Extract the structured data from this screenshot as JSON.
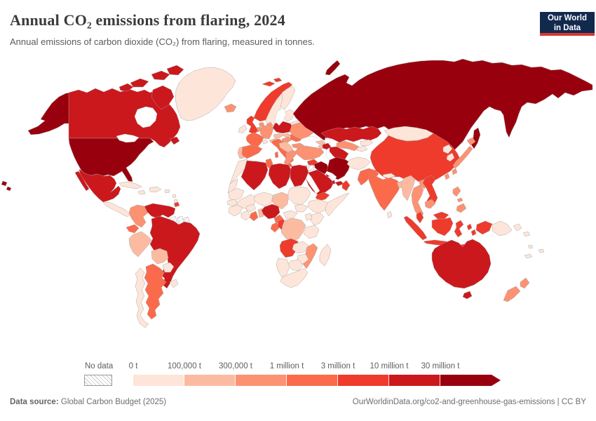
{
  "header": {
    "title": "Annual CO₂ emissions from flaring, 2024",
    "subtitle": "Annual emissions of carbon dioxide (CO₂) from flaring, measured in tonnes."
  },
  "logo": {
    "line1": "Our World",
    "line2": "in Data",
    "bg_color": "#12294e",
    "accent_color": "#d43a33"
  },
  "legend": {
    "no_data_label": "No data",
    "tick_labels": [
      "0 t",
      "100,000 t",
      "300,000 t",
      "1 million t",
      "3 million t",
      "10 million t",
      "30 million t"
    ]
  },
  "footer": {
    "source_label": "Data source:",
    "source_value": "Global Carbon Budget (2025)",
    "credit": "OurWorldinData.org/co2-and-greenhouse-gas-emissions | CC BY"
  },
  "chart_data": {
    "type": "choropleth-map",
    "title": "Annual CO₂ emissions from flaring, 2024",
    "unit": "tonnes",
    "legend_position": "bottom",
    "bin_labels": [
      "0 t",
      "100,000 t",
      "300,000 t",
      "1 million t",
      "3 million t",
      "10 million t",
      "30 million t"
    ],
    "bin_colors": [
      "#fee5d9",
      "#fcbba1",
      "#fc9272",
      "#fb6a4a",
      "#ef3b2c",
      "#cb181d",
      "#99000d"
    ],
    "no_data_color": "hatch",
    "regions": {
      "united-states": 7,
      "russia": 7,
      "iran": 7,
      "iraq": 7,
      "canada": 6,
      "mexico": 6,
      "venezuela": 6,
      "brazil": 6,
      "australia": 6,
      "kazakhstan": 6,
      "turkmenistan": 6,
      "azerbaijan": 6,
      "algeria": 6,
      "libya": 6,
      "egypt": 6,
      "nigeria": 6,
      "saudi-arabia": 6,
      "kuwait": 6,
      "qatar": 6,
      "united-arab-emirates": 6,
      "poland": 6,
      "china": 5,
      "united-kingdom": 5,
      "norway": 5,
      "vietnam": 5,
      "indonesia": 5,
      "malaysia": 5,
      "angola": 5,
      "republic-of-congo": 5,
      "oman": 5,
      "yemen": 5,
      "syria": 5,
      "trinidad-and-tobago": 5,
      "france": 4,
      "spain": 4,
      "italy": 4,
      "romania": 4,
      "india": 4,
      "pakistan": 4,
      "argentina": 4,
      "ecuador": 4,
      "ghana": 4,
      "cameroon": 4,
      "gabon": 4,
      "tunisia": 4,
      "colombia": 3,
      "turkey": 3,
      "ukraine": 3,
      "germany": 3,
      "uzbekistan": 3,
      "thailand": 3,
      "laos": 3,
      "cambodia": 3,
      "japan": 3,
      "philippines": 3,
      "new-zealand": 3,
      "mozambique": 3,
      "greece": 3,
      "denmark": 3,
      "netherlands": 3,
      "belgium": 3,
      "hungary": 3,
      "bulgaria": 3,
      "iceland": 3,
      "taiwan": 3,
      "peru": 2,
      "bolivia": 2,
      "chad": 2,
      "democratic-republic-of-congo": 2,
      "myanmar": 2,
      "bangladesh": 2,
      "portugal": 2,
      "czechia": 2,
      "austria": 2,
      "slovakia": 2,
      "balkans": 2,
      "georgia": 2,
      "armenia": 2,
      "togo-benin": 2,
      "greenland": 1,
      "sweden": 1,
      "finland": 1,
      "ireland": 1,
      "switzerland": 1,
      "belarus": 1,
      "baltics": 1,
      "mongolia": 1,
      "afghanistan": 1,
      "kyrgyzstan": 1,
      "tajikistan": 1,
      "nepal": 1,
      "sri-lanka": 1,
      "north-korea": 1,
      "south-korea": 1,
      "cuba": 1,
      "jamaica": 1,
      "haiti-dominican-republic": 1,
      "puerto-rico": 1,
      "lesser-antilles": 1,
      "central-america": 1,
      "chile": 1,
      "paraguay": 1,
      "uruguay": 1,
      "morocco": 1,
      "western-sahara": 1,
      "mauritania": 1,
      "mali": 1,
      "niger": 1,
      "sudan": 1,
      "south-sudan": 1,
      "ethiopia": 1,
      "somalia": 1,
      "kenya": 1,
      "uganda": 1,
      "tanzania": 1,
      "senegal": 1,
      "west-africa": 1,
      "ivory-coast": 1,
      "burkina-faso": 1,
      "central-african-republic": 1,
      "zambia": 1,
      "zimbabwe": 1,
      "botswana": 1,
      "namibia": 1,
      "south-africa": 1,
      "madagascar": 1,
      "papua-new-guinea": 1,
      "pacific-islands": 1
    },
    "no_data_regions": [
      "guyana",
      "suriname",
      "french-guiana",
      "israel",
      "jordan"
    ]
  }
}
